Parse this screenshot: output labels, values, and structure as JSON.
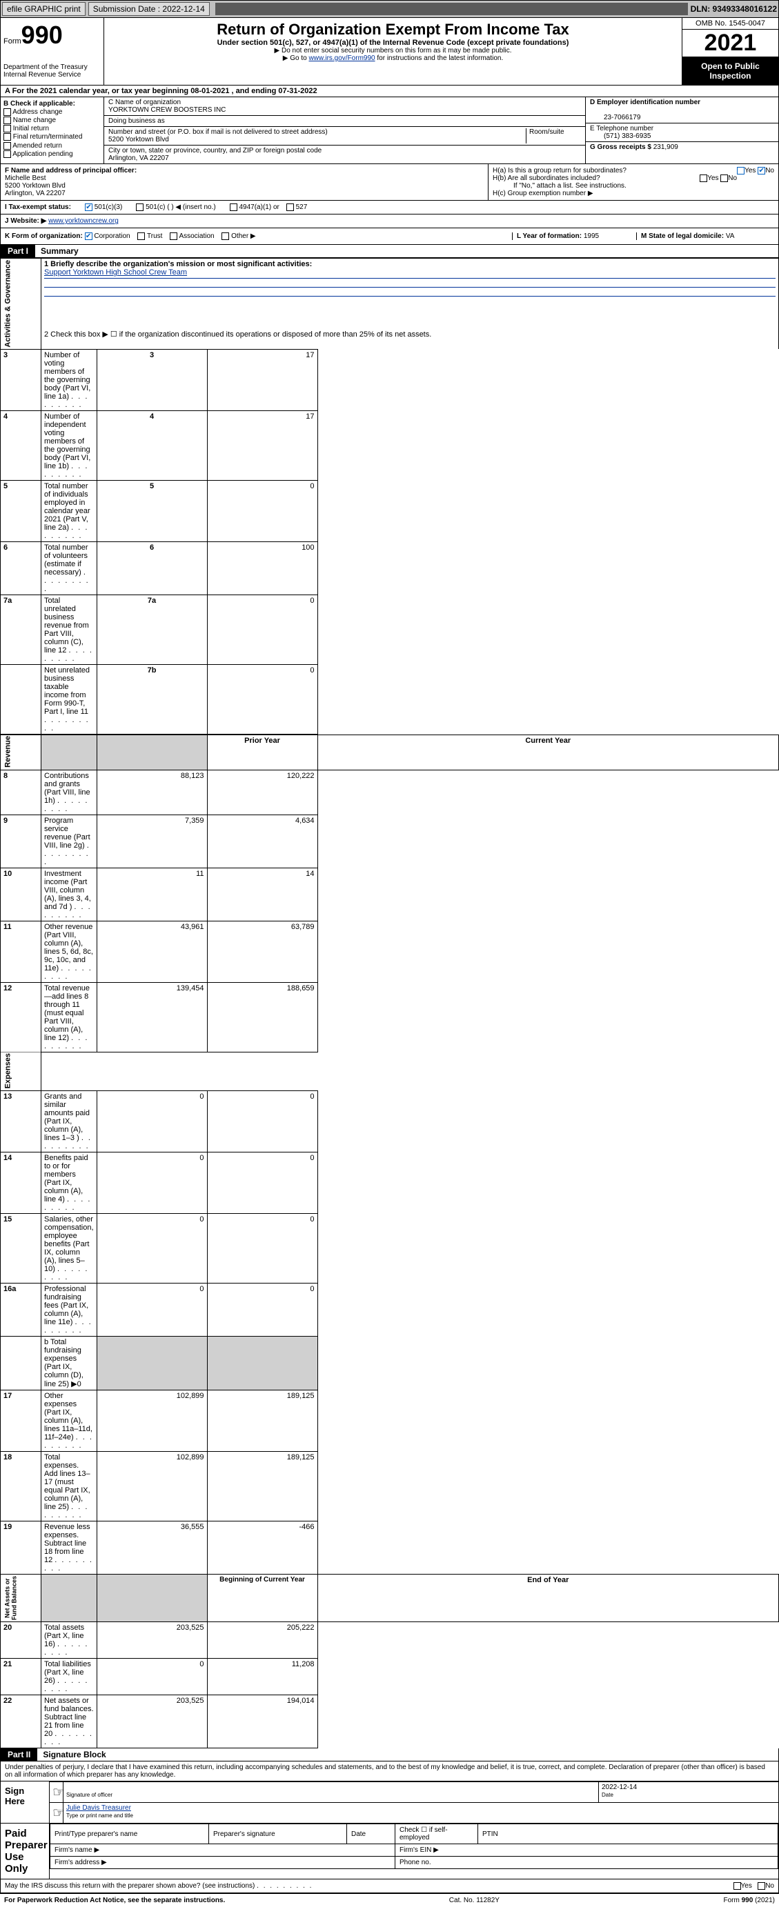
{
  "topbar": {
    "efile": "efile GRAPHIC print",
    "submission": "Submission Date : 2022-12-14",
    "dln": "DLN: 93493348016122"
  },
  "header": {
    "form_label": "Form",
    "form_number": "990",
    "title": "Return of Organization Exempt From Income Tax",
    "subtitle": "Under section 501(c), 527, or 4947(a)(1) of the Internal Revenue Code (except private foundations)",
    "note1": "▶ Do not enter social security numbers on this form as it may be made public.",
    "note2_pre": "▶ Go to ",
    "note2_link": "www.irs.gov/Form990",
    "note2_post": " for instructions and the latest information.",
    "dept": "Department of the Treasury\nInternal Revenue Service",
    "omb": "OMB No. 1545-0047",
    "year": "2021",
    "open": "Open to Public Inspection"
  },
  "line_a": "A For the 2021 calendar year, or tax year beginning 08-01-2021   , and ending 07-31-2022",
  "col_b": {
    "label": "B Check if applicable:",
    "items": [
      "Address change",
      "Name change",
      "Initial return",
      "Final return/terminated",
      "Amended return",
      "Application pending"
    ]
  },
  "box_c": {
    "label": "C Name of organization",
    "name": "YORKTOWN CREW BOOSTERS INC",
    "dba_label": "Doing business as",
    "addr_label": "Number and street (or P.O. box if mail is not delivered to street address)",
    "room_label": "Room/suite",
    "street": "5200 Yorktown Blvd",
    "city_label": "City or town, state or province, country, and ZIP or foreign postal code",
    "city": "Arlington, VA  22207"
  },
  "box_d": {
    "label": "D Employer identification number",
    "value": "23-7066179"
  },
  "box_e": {
    "label": "E Telephone number",
    "value": "(571) 383-6935"
  },
  "box_g": {
    "label": "G Gross receipts $",
    "value": "231,909"
  },
  "box_f": {
    "label": "F Name and address of principal officer:",
    "name": "Michelle Best",
    "street": "5200 Yorktown Blvd",
    "city": "Arlington, VA  22207"
  },
  "box_h": {
    "ha": "H(a)  Is this a group return for subordinates?",
    "hb": "H(b)  Are all subordinates included?",
    "hb_note": "If \"No,\" attach a list. See instructions.",
    "hc": "H(c)  Group exemption number ▶",
    "yes": "Yes",
    "no": "No"
  },
  "box_i": {
    "label": "I   Tax-exempt status:",
    "opts": [
      "501(c)(3)",
      "501(c) (  ) ◀ (insert no.)",
      "4947(a)(1) or",
      "527"
    ]
  },
  "box_j": {
    "label": "J   Website: ▶",
    "value": "www.yorktowncrew.org"
  },
  "box_k": {
    "label": "K Form of organization:",
    "opts": [
      "Corporation",
      "Trust",
      "Association",
      "Other ▶"
    ]
  },
  "box_l": {
    "label": "L Year of formation:",
    "value": "1995"
  },
  "box_m": {
    "label": "M State of legal domicile:",
    "value": "VA"
  },
  "part1": {
    "tag": "Part I",
    "title": "Summary"
  },
  "summary": {
    "l1_label": "1   Briefly describe the organization's mission or most significant activities:",
    "l1_value": "Support Yorktown High School Crew Team",
    "l2": "2   Check this box ▶ ☐  if the organization discontinued its operations or disposed of more than 25% of its net assets.",
    "rows_ag": [
      {
        "n": "3",
        "t": "Number of voting members of the governing body (Part VI, line 1a)",
        "b": "3",
        "v": "17"
      },
      {
        "n": "4",
        "t": "Number of independent voting members of the governing body (Part VI, line 1b)",
        "b": "4",
        "v": "17"
      },
      {
        "n": "5",
        "t": "Total number of individuals employed in calendar year 2021 (Part V, line 2a)",
        "b": "5",
        "v": "0"
      },
      {
        "n": "6",
        "t": "Total number of volunteers (estimate if necessary)",
        "b": "6",
        "v": "100"
      },
      {
        "n": "7a",
        "t": "Total unrelated business revenue from Part VIII, column (C), line 12",
        "b": "7a",
        "v": "0"
      },
      {
        "n": "",
        "t": "Net unrelated business taxable income from Form 990-T, Part I, line 11",
        "b": "7b",
        "v": "0"
      }
    ],
    "hdr_prior": "Prior Year",
    "hdr_curr": "Current Year",
    "rows_rev": [
      {
        "n": "8",
        "t": "Contributions and grants (Part VIII, line 1h)",
        "p": "88,123",
        "c": "120,222"
      },
      {
        "n": "9",
        "t": "Program service revenue (Part VIII, line 2g)",
        "p": "7,359",
        "c": "4,634"
      },
      {
        "n": "10",
        "t": "Investment income (Part VIII, column (A), lines 3, 4, and 7d )",
        "p": "11",
        "c": "14"
      },
      {
        "n": "11",
        "t": "Other revenue (Part VIII, column (A), lines 5, 6d, 8c, 9c, 10c, and 11e)",
        "p": "43,961",
        "c": "63,789"
      },
      {
        "n": "12",
        "t": "Total revenue—add lines 8 through 11 (must equal Part VIII, column (A), line 12)",
        "p": "139,454",
        "c": "188,659"
      }
    ],
    "rows_exp": [
      {
        "n": "13",
        "t": "Grants and similar amounts paid (Part IX, column (A), lines 1–3 )",
        "p": "0",
        "c": "0"
      },
      {
        "n": "14",
        "t": "Benefits paid to or for members (Part IX, column (A), line 4)",
        "p": "0",
        "c": "0"
      },
      {
        "n": "15",
        "t": "Salaries, other compensation, employee benefits (Part IX, column (A), lines 5–10)",
        "p": "0",
        "c": "0"
      },
      {
        "n": "16a",
        "t": "Professional fundraising fees (Part IX, column (A), line 11e)",
        "p": "0",
        "c": "0"
      }
    ],
    "l16b": "b   Total fundraising expenses (Part IX, column (D), line 25) ▶0",
    "rows_exp2": [
      {
        "n": "17",
        "t": "Other expenses (Part IX, column (A), lines 11a–11d, 11f–24e)",
        "p": "102,899",
        "c": "189,125"
      },
      {
        "n": "18",
        "t": "Total expenses. Add lines 13–17 (must equal Part IX, column (A), line 25)",
        "p": "102,899",
        "c": "189,125"
      },
      {
        "n": "19",
        "t": "Revenue less expenses. Subtract line 18 from line 12",
        "p": "36,555",
        "c": "-466"
      }
    ],
    "hdr_beg": "Beginning of Current Year",
    "hdr_end": "End of Year",
    "rows_na": [
      {
        "n": "20",
        "t": "Total assets (Part X, line 16)",
        "p": "203,525",
        "c": "205,222"
      },
      {
        "n": "21",
        "t": "Total liabilities (Part X, line 26)",
        "p": "0",
        "c": "11,208"
      },
      {
        "n": "22",
        "t": "Net assets or fund balances. Subtract line 21 from line 20",
        "p": "203,525",
        "c": "194,014"
      }
    ],
    "vlabels": {
      "ag": "Activities & Governance",
      "rev": "Revenue",
      "exp": "Expenses",
      "na": "Net Assets or\nFund Balances"
    }
  },
  "part2": {
    "tag": "Part II",
    "title": "Signature Block"
  },
  "sig": {
    "decl": "Under penalties of perjury, I declare that I have examined this return, including accompanying schedules and statements, and to the best of my knowledge and belief, it is true, correct, and complete. Declaration of preparer (other than officer) is based on all information of which preparer has any knowledge.",
    "sign_here": "Sign Here",
    "sig_officer": "Signature of officer",
    "date_label": "Date",
    "date": "2022-12-14",
    "name_title": "Julie Davis  Treasurer",
    "type_label": "Type or print name and title",
    "paid": "Paid Preparer Use Only",
    "prep_name": "Print/Type preparer's name",
    "prep_sig": "Preparer's signature",
    "prep_date": "Date",
    "check_self": "Check ☐ if self-employed",
    "ptin": "PTIN",
    "firm_name": "Firm's name   ▶",
    "firm_ein": "Firm's EIN ▶",
    "firm_addr": "Firm's address ▶",
    "phone": "Phone no.",
    "discuss": "May the IRS discuss this return with the preparer shown above? (see instructions)"
  },
  "footer": {
    "pra": "For Paperwork Reduction Act Notice, see the separate instructions.",
    "cat": "Cat. No. 11282Y",
    "form": "Form 990 (2021)"
  }
}
